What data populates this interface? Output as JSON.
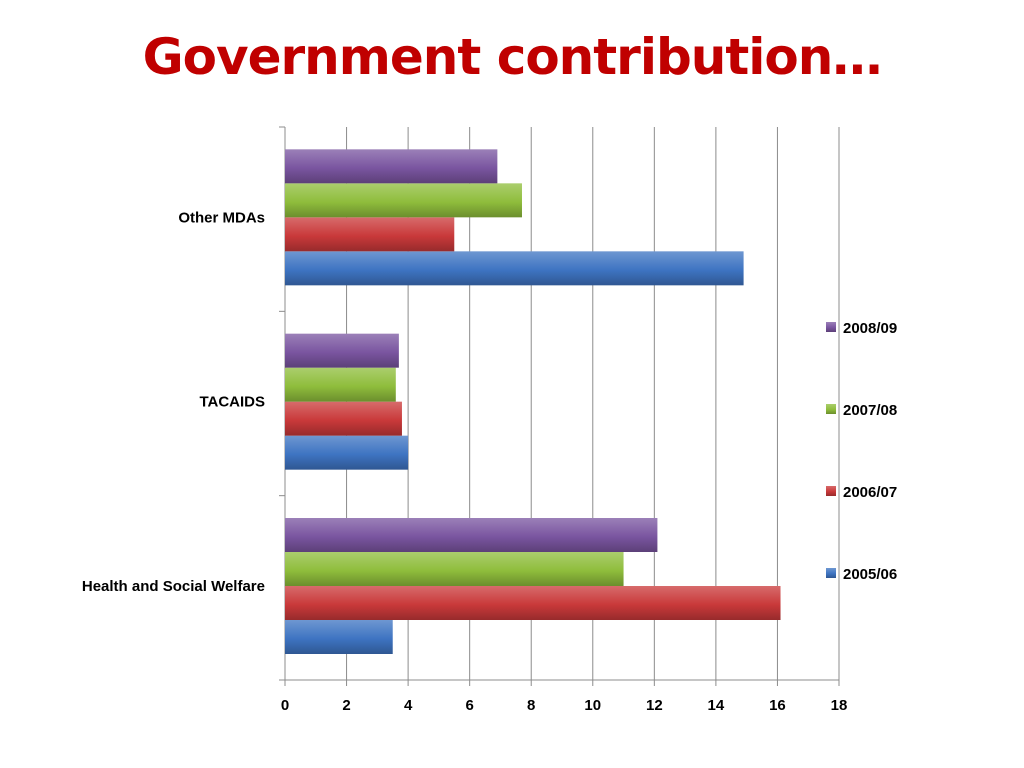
{
  "slide": {
    "title": "Government contribution…"
  },
  "chart_data": {
    "type": "bar",
    "orientation": "horizontal",
    "title": "",
    "xlabel": "",
    "ylabel": "",
    "xlim": [
      0,
      18
    ],
    "x_ticks": [
      0,
      2,
      4,
      6,
      8,
      10,
      12,
      14,
      16,
      18
    ],
    "grid": "vertical",
    "legend_position": "right",
    "categories": [
      "Health and Social Welfare",
      "TACAIDS",
      "Other MDAs"
    ],
    "series": [
      {
        "name": "2005/06",
        "color": "#3e74c2",
        "values": [
          3.5,
          4.0,
          14.9
        ]
      },
      {
        "name": "2006/07",
        "color": "#c9393a",
        "values": [
          16.1,
          3.8,
          5.5
        ]
      },
      {
        "name": "2007/08",
        "color": "#8fbd3c",
        "values": [
          11.0,
          3.6,
          7.7
        ]
      },
      {
        "name": "2008/09",
        "color": "#7a55a0",
        "values": [
          12.1,
          3.7,
          6.9
        ]
      }
    ]
  }
}
